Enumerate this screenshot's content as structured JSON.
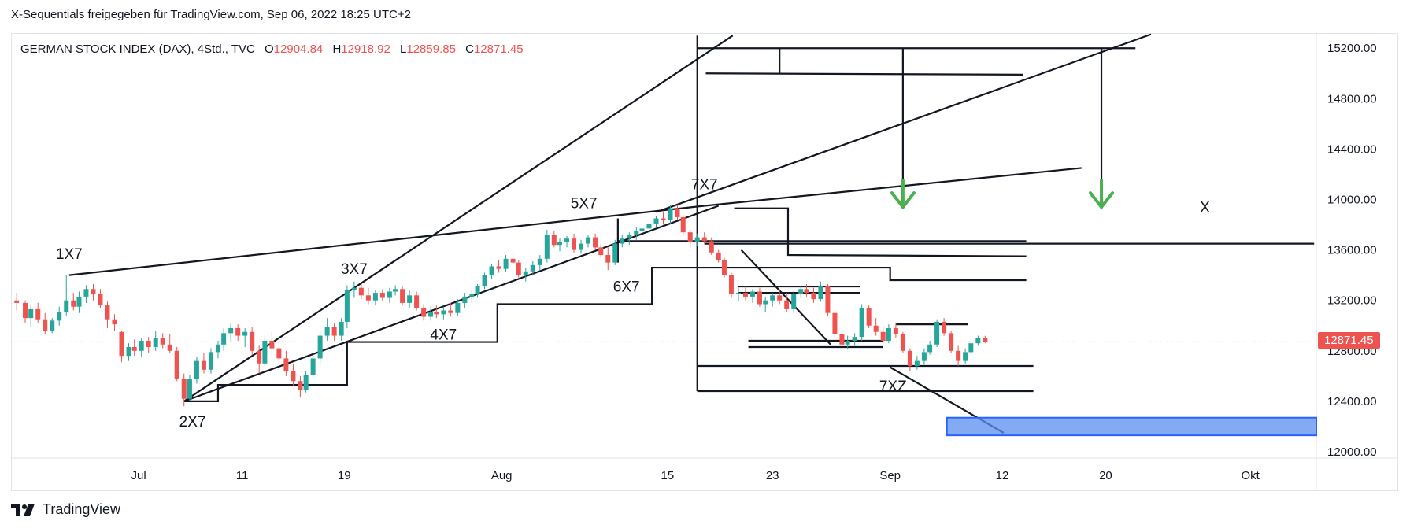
{
  "caption": "X-Sequentials freigegeben für TradingView.com, Sep 06, 2022 18:25 UTC+2",
  "legend": {
    "symbol": "GERMAN STOCK INDEX (DAX), 4Std., TVC",
    "o_label": "O",
    "o_value": "12904.84",
    "h_label": "H",
    "h_value": "12918.92",
    "l_label": "L",
    "l_value": "12859.85",
    "c_label": "C",
    "c_value": "12871.45"
  },
  "brand": "TradingView",
  "last_price_label": "12871.45",
  "colors": {
    "up": "#26a69a",
    "down": "#ef5350",
    "drawing": "#131722",
    "arrow": "#4caf50",
    "zone": "#5b8def"
  },
  "chart_data": {
    "type": "candlestick",
    "xlim": [
      0,
      92
    ],
    "ylim": [
      11950,
      15320
    ],
    "y_ticks": [
      12000,
      12400,
      12800,
      13200,
      13600,
      14000,
      14400,
      14800,
      15200
    ],
    "y_tick_labels": [
      "12000.00",
      "12400.00",
      "12800.00",
      "13200.00",
      "13600.00",
      "14000.00",
      "14400.00",
      "14800.00",
      "15200.00"
    ],
    "x_ticks": [
      {
        "x": 9,
        "label": "Jul"
      },
      {
        "x": 16.3,
        "label": "11"
      },
      {
        "x": 23.5,
        "label": "19"
      },
      {
        "x": 34.6,
        "label": "Aug"
      },
      {
        "x": 46.3,
        "label": "15"
      },
      {
        "x": 53.7,
        "label": "23"
      },
      {
        "x": 62,
        "label": "Sep"
      },
      {
        "x": 69.9,
        "label": "12"
      },
      {
        "x": 77.2,
        "label": "20"
      },
      {
        "x": 87.4,
        "label": "Okt"
      }
    ],
    "last_price": 12871.45,
    "candles": [
      [
        0.4,
        13200,
        13260,
        13120,
        13180
      ],
      [
        1.0,
        13180,
        13200,
        13020,
        13060
      ],
      [
        1.4,
        13060,
        13160,
        12990,
        13130
      ],
      [
        1.9,
        13130,
        13180,
        13020,
        13050
      ],
      [
        2.4,
        13050,
        13100,
        12930,
        12960
      ],
      [
        2.9,
        12960,
        13060,
        12940,
        13040
      ],
      [
        3.4,
        13040,
        13150,
        13000,
        13110
      ],
      [
        3.9,
        13110,
        13400,
        13080,
        13200
      ],
      [
        4.4,
        13200,
        13260,
        13120,
        13150
      ],
      [
        4.8,
        13150,
        13270,
        13100,
        13230
      ],
      [
        5.3,
        13230,
        13320,
        13180,
        13290
      ],
      [
        5.8,
        13290,
        13330,
        13200,
        13250
      ],
      [
        6.3,
        13250,
        13290,
        13140,
        13160
      ],
      [
        6.8,
        13160,
        13190,
        12980,
        13050
      ],
      [
        7.3,
        13050,
        13090,
        12960,
        13010
      ],
      [
        7.8,
        12950,
        12960,
        12710,
        12760
      ],
      [
        8.3,
        12760,
        12860,
        12720,
        12830
      ],
      [
        8.7,
        12830,
        12890,
        12760,
        12800
      ],
      [
        9.2,
        12800,
        12900,
        12750,
        12880
      ],
      [
        9.7,
        12880,
        12910,
        12780,
        12830
      ],
      [
        10.2,
        12830,
        12960,
        12800,
        12900
      ],
      [
        10.7,
        12900,
        12940,
        12820,
        12850
      ],
      [
        11.2,
        12850,
        12930,
        12780,
        12800
      ],
      [
        11.7,
        12800,
        12830,
        12560,
        12580
      ],
      [
        12.2,
        12580,
        12620,
        12360,
        12420
      ],
      [
        12.6,
        12420,
        12610,
        12400,
        12580
      ],
      [
        13.1,
        12580,
        12750,
        12540,
        12720
      ],
      [
        13.6,
        12720,
        12780,
        12620,
        12650
      ],
      [
        14.1,
        12650,
        12820,
        12620,
        12790
      ],
      [
        14.6,
        12790,
        12880,
        12740,
        12850
      ],
      [
        15.0,
        12850,
        12980,
        12800,
        12940
      ],
      [
        15.5,
        12940,
        13020,
        12870,
        12980
      ],
      [
        16.0,
        12980,
        13010,
        12880,
        12920
      ],
      [
        16.5,
        12920,
        12980,
        12830,
        12950
      ],
      [
        17.0,
        12950,
        12990,
        12770,
        12800
      ],
      [
        17.5,
        12800,
        12840,
        12620,
        12700
      ],
      [
        17.9,
        12700,
        12920,
        12680,
        12880
      ],
      [
        18.4,
        12880,
        12950,
        12760,
        12820
      ],
      [
        18.9,
        12820,
        12870,
        12700,
        12740
      ],
      [
        19.4,
        12740,
        12800,
        12600,
        12640
      ],
      [
        19.9,
        12640,
        12700,
        12520,
        12560
      ],
      [
        20.4,
        12560,
        12600,
        12430,
        12490
      ],
      [
        20.8,
        12490,
        12640,
        12470,
        12610
      ],
      [
        21.3,
        12610,
        12780,
        12580,
        12740
      ],
      [
        21.8,
        12740,
        12960,
        12700,
        12920
      ],
      [
        22.3,
        12920,
        13060,
        12880,
        12990
      ],
      [
        22.8,
        12990,
        13020,
        12880,
        12920
      ],
      [
        23.3,
        12920,
        13060,
        12880,
        13030
      ],
      [
        23.7,
        13030,
        13320,
        12980,
        13280
      ],
      [
        24.2,
        13280,
        13350,
        13220,
        13300
      ],
      [
        24.7,
        13300,
        13330,
        13210,
        13240
      ],
      [
        25.2,
        13240,
        13300,
        13170,
        13200
      ],
      [
        25.7,
        13200,
        13280,
        13160,
        13260
      ],
      [
        26.2,
        13260,
        13290,
        13190,
        13220
      ],
      [
        26.7,
        13220,
        13300,
        13180,
        13270
      ],
      [
        27.1,
        13270,
        13320,
        13240,
        13290
      ],
      [
        27.6,
        13290,
        13310,
        13160,
        13180
      ],
      [
        28.1,
        13180,
        13280,
        13140,
        13240
      ],
      [
        28.6,
        13240,
        13270,
        13120,
        13140
      ],
      [
        29.1,
        13140,
        13170,
        13040,
        13070
      ],
      [
        29.6,
        13070,
        13150,
        13040,
        13110
      ],
      [
        30.0,
        13110,
        13160,
        13060,
        13090
      ],
      [
        30.5,
        13090,
        13150,
        13050,
        13120
      ],
      [
        31.0,
        13120,
        13180,
        13070,
        13100
      ],
      [
        31.5,
        13100,
        13210,
        13080,
        13180
      ],
      [
        32.0,
        13180,
        13260,
        13140,
        13230
      ],
      [
        32.5,
        13230,
        13280,
        13180,
        13250
      ],
      [
        32.9,
        13250,
        13330,
        13220,
        13310
      ],
      [
        33.4,
        13310,
        13420,
        13290,
        13400
      ],
      [
        33.9,
        13400,
        13490,
        13370,
        13470
      ],
      [
        34.4,
        13470,
        13520,
        13420,
        13450
      ],
      [
        34.9,
        13450,
        13560,
        13430,
        13530
      ],
      [
        35.4,
        13530,
        13580,
        13470,
        13500
      ],
      [
        35.8,
        13500,
        13520,
        13380,
        13400
      ],
      [
        36.3,
        13400,
        13460,
        13350,
        13430
      ],
      [
        36.8,
        13430,
        13510,
        13400,
        13480
      ],
      [
        37.3,
        13480,
        13560,
        13440,
        13530
      ],
      [
        37.8,
        13530,
        13760,
        13500,
        13720
      ],
      [
        38.3,
        13720,
        13750,
        13620,
        13640
      ],
      [
        38.7,
        13640,
        13690,
        13590,
        13660
      ],
      [
        39.2,
        13660,
        13710,
        13620,
        13690
      ],
      [
        39.7,
        13690,
        13730,
        13580,
        13600
      ],
      [
        40.2,
        13600,
        13680,
        13570,
        13650
      ],
      [
        40.7,
        13650,
        13720,
        13620,
        13700
      ],
      [
        41.2,
        13700,
        13730,
        13600,
        13620
      ],
      [
        41.6,
        13620,
        13650,
        13540,
        13560
      ],
      [
        42.1,
        13560,
        13620,
        13440,
        13500
      ],
      [
        42.6,
        13500,
        13680,
        13480,
        13650
      ],
      [
        43.1,
        13650,
        13720,
        13620,
        13690
      ],
      [
        43.6,
        13690,
        13740,
        13640,
        13720
      ],
      [
        44.1,
        13720,
        13780,
        13680,
        13750
      ],
      [
        44.5,
        13750,
        13800,
        13700,
        13770
      ],
      [
        45.0,
        13770,
        13840,
        13730,
        13810
      ],
      [
        45.5,
        13810,
        13870,
        13780,
        13850
      ],
      [
        46.0,
        13850,
        13900,
        13800,
        13840
      ],
      [
        46.5,
        13840,
        13960,
        13810,
        13930
      ],
      [
        47.0,
        13930,
        13960,
        13840,
        13860
      ],
      [
        47.4,
        13860,
        13880,
        13710,
        13740
      ],
      [
        47.9,
        13740,
        13760,
        13620,
        13660
      ],
      [
        48.4,
        13660,
        13730,
        13630,
        13700
      ],
      [
        48.9,
        13700,
        13740,
        13650,
        13670
      ],
      [
        49.4,
        13670,
        13700,
        13560,
        13580
      ],
      [
        49.9,
        13580,
        13600,
        13500,
        13520
      ],
      [
        50.3,
        13520,
        13540,
        13380,
        13400
      ],
      [
        50.8,
        13400,
        13420,
        13220,
        13250
      ],
      [
        51.3,
        13250,
        13300,
        13190,
        13260
      ],
      [
        51.8,
        13260,
        13310,
        13200,
        13230
      ],
      [
        52.3,
        13230,
        13290,
        13180,
        13270
      ],
      [
        52.8,
        13270,
        13300,
        13150,
        13170
      ],
      [
        53.2,
        13170,
        13230,
        13110,
        13200
      ],
      [
        53.7,
        13200,
        13260,
        13150,
        13240
      ],
      [
        54.2,
        13240,
        13290,
        13170,
        13200
      ],
      [
        54.7,
        13200,
        13260,
        13110,
        13130
      ],
      [
        55.2,
        13130,
        13270,
        13100,
        13250
      ],
      [
        55.7,
        13250,
        13310,
        13220,
        13290
      ],
      [
        56.1,
        13290,
        13330,
        13230,
        13260
      ],
      [
        56.6,
        13260,
        13300,
        13180,
        13210
      ],
      [
        57.1,
        13210,
        13350,
        13190,
        13310
      ],
      [
        57.6,
        13310,
        13330,
        13080,
        13100
      ],
      [
        58.1,
        13100,
        13130,
        12900,
        12930
      ],
      [
        58.6,
        12930,
        12970,
        12830,
        12850
      ],
      [
        59.0,
        12850,
        12920,
        12810,
        12880
      ],
      [
        59.5,
        12880,
        12940,
        12840,
        12910
      ],
      [
        60.0,
        12910,
        13170,
        12880,
        13140
      ],
      [
        60.5,
        13140,
        13160,
        12980,
        13000
      ],
      [
        61.0,
        13000,
        13060,
        12920,
        12950
      ],
      [
        61.5,
        12950,
        13000,
        12860,
        12880
      ],
      [
        61.9,
        12880,
        13010,
        12860,
        12980
      ],
      [
        62.4,
        12980,
        13020,
        12900,
        12930
      ],
      [
        62.9,
        12930,
        12950,
        12780,
        12800
      ],
      [
        63.4,
        12800,
        12820,
        12640,
        12680
      ],
      [
        63.9,
        12680,
        12760,
        12650,
        12720
      ],
      [
        64.4,
        12720,
        12820,
        12690,
        12790
      ],
      [
        64.8,
        12790,
        12880,
        12770,
        12850
      ],
      [
        65.3,
        12850,
        13050,
        12830,
        13030
      ],
      [
        65.8,
        13030,
        13060,
        12920,
        12940
      ],
      [
        66.3,
        12940,
        12960,
        12780,
        12800
      ],
      [
        66.8,
        12800,
        12840,
        12680,
        12720
      ],
      [
        67.3,
        12720,
        12820,
        12700,
        12790
      ],
      [
        67.7,
        12790,
        12880,
        12770,
        12860
      ],
      [
        68.2,
        12860,
        12920,
        12840,
        12900
      ],
      [
        68.7,
        12904.84,
        12918.92,
        12859.85,
        12871.45
      ]
    ],
    "annotations": [
      {
        "label": "1X7",
        "x": 4.1,
        "y": 13530
      },
      {
        "label": "2X7",
        "x": 12.8,
        "y": 12200
      },
      {
        "label": "3X7",
        "x": 24.2,
        "y": 13410
      },
      {
        "label": "4X7",
        "x": 30.5,
        "y": 12890
      },
      {
        "label": "5X7",
        "x": 40.4,
        "y": 13930
      },
      {
        "label": "6X7",
        "x": 43.4,
        "y": 13270
      },
      {
        "label": "7X7",
        "x": 48.9,
        "y": 14080
      },
      {
        "label": "7XZ",
        "x": 62.2,
        "y": 12480
      },
      {
        "label": "X",
        "x": 84.2,
        "y": 13900
      }
    ],
    "grid": false,
    "legend_position": "top-left"
  }
}
